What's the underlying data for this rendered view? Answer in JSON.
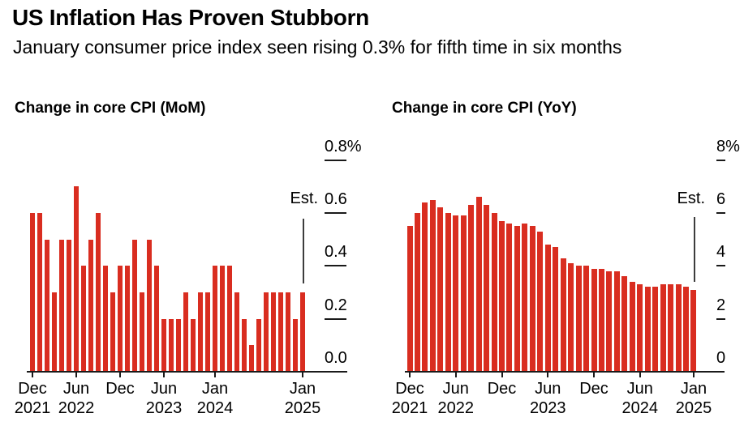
{
  "header": {
    "title": "US Inflation Has Proven Stubborn",
    "subtitle": "January consumer price index seen rising 0.3% for fifth time in six months"
  },
  "colors": {
    "bar": "#d92d20",
    "text": "#000000",
    "axis": "#1a1a1a",
    "est_line": "#3d3d3d",
    "background": "#ffffff"
  },
  "chart_data": [
    {
      "type": "bar",
      "title": "Change in core CPI (MoM)",
      "unit": "percent",
      "ylim": [
        0,
        0.8
      ],
      "grid": false,
      "legend_position": "none",
      "axis_side": "right",
      "categories": [
        "Dec 2021",
        "Jan 2022",
        "Feb 2022",
        "Mar 2022",
        "Apr 2022",
        "May 2022",
        "Jun 2022",
        "Jul 2022",
        "Aug 2022",
        "Sep 2022",
        "Oct 2022",
        "Nov 2022",
        "Dec 2022",
        "Jan 2023",
        "Feb 2023",
        "Mar 2023",
        "Apr 2023",
        "May 2023",
        "Jun 2023",
        "Jul 2023",
        "Aug 2023",
        "Sep 2023",
        "Oct 2023",
        "Nov 2023",
        "Dec 2023",
        "Jan 2024",
        "Feb 2024",
        "Mar 2024",
        "Apr 2024",
        "May 2024",
        "Jun 2024",
        "Jul 2024",
        "Aug 2024",
        "Sep 2024",
        "Oct 2024",
        "Nov 2024",
        "Dec 2024",
        "Jan 2025"
      ],
      "values": [
        0.6,
        0.6,
        0.5,
        0.3,
        0.5,
        0.5,
        0.7,
        0.4,
        0.5,
        0.6,
        0.4,
        0.3,
        0.4,
        0.4,
        0.5,
        0.3,
        0.5,
        0.4,
        0.2,
        0.2,
        0.2,
        0.3,
        0.2,
        0.3,
        0.3,
        0.4,
        0.4,
        0.4,
        0.3,
        0.2,
        0.1,
        0.2,
        0.3,
        0.3,
        0.3,
        0.3,
        0.2,
        0.3
      ],
      "yticks": [
        {
          "value": 0.8,
          "label": "0.8%"
        },
        {
          "value": 0.6,
          "label": "0.6"
        },
        {
          "value": 0.4,
          "label": "0.4"
        },
        {
          "value": 0.2,
          "label": "0.2"
        },
        {
          "value": 0.0,
          "label": "0.0"
        }
      ],
      "xticks": [
        {
          "category": "Dec 2021",
          "line1": "Dec",
          "line2": "2021"
        },
        {
          "category": "Jun 2022",
          "line1": "Jun",
          "line2": "2022"
        },
        {
          "category": "Dec 2022",
          "line1": "Dec",
          "line2": ""
        },
        {
          "category": "Jun 2023",
          "line1": "Jun",
          "line2": "2023"
        },
        {
          "category": "Jan 2024",
          "line1": "Jan",
          "line2": "2024"
        },
        {
          "category": "Jan 2025",
          "line1": "Jan",
          "line2": "2025"
        }
      ],
      "annotation": {
        "label": "Est.",
        "category": "Jan 2025",
        "estimated_value": 0.3
      }
    },
    {
      "type": "bar",
      "title": "Change in core CPI (YoY)",
      "unit": "percent",
      "ylim": [
        0,
        8
      ],
      "grid": false,
      "legend_position": "none",
      "axis_side": "right",
      "categories": [
        "Dec 2021",
        "Jan 2022",
        "Feb 2022",
        "Mar 2022",
        "Apr 2022",
        "May 2022",
        "Jun 2022",
        "Jul 2022",
        "Aug 2022",
        "Sep 2022",
        "Oct 2022",
        "Nov 2022",
        "Dec 2022",
        "Jan 2023",
        "Feb 2023",
        "Mar 2023",
        "Apr 2023",
        "May 2023",
        "Jun 2023",
        "Jul 2023",
        "Aug 2023",
        "Sep 2023",
        "Oct 2023",
        "Nov 2023",
        "Dec 2023",
        "Jan 2024",
        "Feb 2024",
        "Mar 2024",
        "Apr 2024",
        "May 2024",
        "Jun 2024",
        "Jul 2024",
        "Aug 2024",
        "Sep 2024",
        "Oct 2024",
        "Nov 2024",
        "Dec 2024",
        "Jan 2025"
      ],
      "values": [
        5.5,
        6.0,
        6.4,
        6.5,
        6.2,
        6.0,
        5.9,
        5.9,
        6.3,
        6.6,
        6.3,
        6.0,
        5.7,
        5.6,
        5.5,
        5.6,
        5.5,
        5.3,
        4.8,
        4.7,
        4.3,
        4.1,
        4.0,
        4.0,
        3.9,
        3.9,
        3.8,
        3.8,
        3.6,
        3.4,
        3.3,
        3.2,
        3.2,
        3.3,
        3.3,
        3.3,
        3.2,
        3.1
      ],
      "yticks": [
        {
          "value": 8,
          "label": "8%"
        },
        {
          "value": 6,
          "label": "6"
        },
        {
          "value": 4,
          "label": "4"
        },
        {
          "value": 2,
          "label": "2"
        },
        {
          "value": 0,
          "label": "0"
        }
      ],
      "xticks": [
        {
          "category": "Dec 2021",
          "line1": "Dec",
          "line2": "2021"
        },
        {
          "category": "Jun 2022",
          "line1": "Jun",
          "line2": "2022"
        },
        {
          "category": "Dec 2022",
          "line1": "Dec",
          "line2": ""
        },
        {
          "category": "Jun 2023",
          "line1": "Jun",
          "line2": "2023"
        },
        {
          "category": "Dec 2023",
          "line1": "Dec",
          "line2": ""
        },
        {
          "category": "Jun 2024",
          "line1": "Jun",
          "line2": "2024"
        },
        {
          "category": "Jan 2025",
          "line1": "Jan",
          "line2": "2025"
        }
      ],
      "annotation": {
        "label": "Est.",
        "category": "Jan 2025",
        "estimated_value": 3.1
      }
    }
  ]
}
